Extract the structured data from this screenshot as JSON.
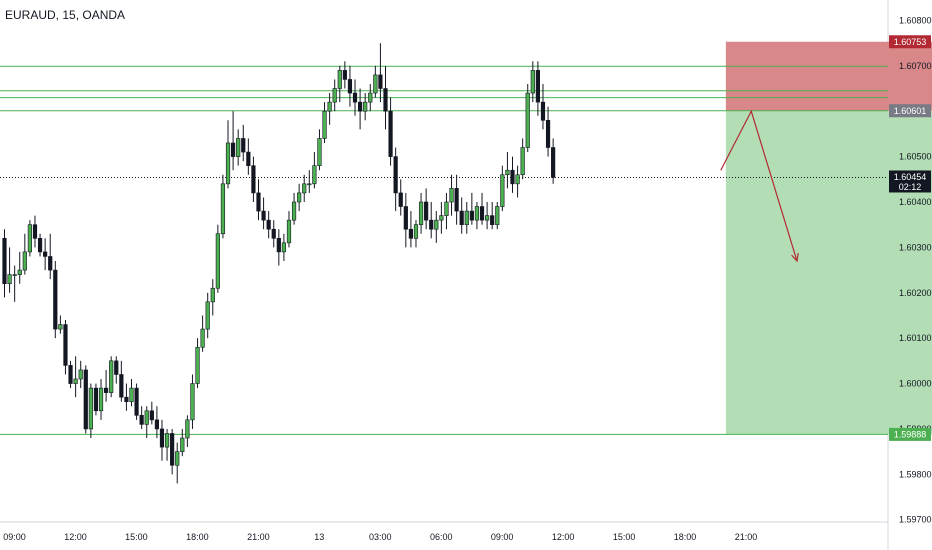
{
  "header": {
    "title": "EURAUD, 15, OANDA"
  },
  "chart_data": {
    "type": "candlestick",
    "symbol": "EURAUD",
    "interval": "15",
    "source": "OANDA",
    "y_ticks": [
      "1.60800",
      "1.60700",
      "1.60500",
      "1.60400",
      "1.60300",
      "1.60200",
      "1.60100",
      "1.60000",
      "1.59900",
      "1.59800",
      "1.59700"
    ],
    "y_tick_values": [
      1.608,
      1.607,
      1.605,
      1.604,
      1.603,
      1.602,
      1.601,
      1.6,
      1.599,
      1.598,
      1.597
    ],
    "ylim": [
      1.59695,
      1.60845
    ],
    "x_ticks": [
      "09:00",
      "12:00",
      "15:00",
      "18:00",
      "21:00",
      "13",
      "03:00",
      "06:00",
      "09:00",
      "12:00",
      "15:00",
      "18:00",
      "21:00"
    ],
    "bars_per_x_tick": 12,
    "price_badges": [
      {
        "label": "1.60753",
        "value": 1.60753,
        "color": "#b22833"
      },
      {
        "label": "1.60601",
        "value": 1.60601,
        "color": "#787b86"
      },
      {
        "label": "1.60454",
        "sub": "02:12",
        "value": 1.60454,
        "color": "#131722"
      },
      {
        "label": "1.59888",
        "value": 1.59888,
        "color": "#4caf50"
      }
    ],
    "horizontal_lines": [
      1.60699,
      1.60645,
      1.6063,
      1.60601,
      1.59888
    ],
    "current_price": 1.60454,
    "position": {
      "direction": "short",
      "entry": 1.60601,
      "stop": 1.60753,
      "target": 1.59888,
      "start_bar": 142,
      "end_bar": 207
    },
    "projection": [
      {
        "bar": 141,
        "price": 1.6047
      },
      {
        "bar": 147,
        "price": 1.606
      },
      {
        "bar": 156,
        "price": 1.6027
      }
    ],
    "candles": [
      [
        1.6032,
        1.6034,
        1.6019,
        1.6022
      ],
      [
        1.6022,
        1.603,
        1.602,
        1.6024
      ],
      [
        1.6024,
        1.6026,
        1.6018,
        1.6024
      ],
      [
        1.6024,
        1.6029,
        1.6022,
        1.6025
      ],
      [
        1.6025,
        1.6033,
        1.6024,
        1.6029
      ],
      [
        1.6029,
        1.6036,
        1.6028,
        1.6035
      ],
      [
        1.6035,
        1.6037,
        1.603,
        1.6032
      ],
      [
        1.6032,
        1.6033,
        1.6028,
        1.6029
      ],
      [
        1.6029,
        1.6032,
        1.6025,
        1.6028
      ],
      [
        1.6028,
        1.6033,
        1.6023,
        1.6025
      ],
      [
        1.6025,
        1.6027,
        1.601,
        1.6012
      ],
      [
        1.6012,
        1.6015,
        1.6011,
        1.6013
      ],
      [
        1.6013,
        1.6014,
        1.6002,
        1.6004
      ],
      [
        1.6004,
        1.6005,
        1.5999,
        1.6
      ],
      [
        1.6,
        1.6006,
        1.5997,
        1.6001
      ],
      [
        1.6001,
        1.6005,
        1.5999,
        1.6003
      ],
      [
        1.6003,
        1.6004,
        1.5989,
        1.599
      ],
      [
        1.599,
        1.6,
        1.5988,
        1.5999
      ],
      [
        1.5999,
        1.6,
        1.5993,
        1.5994
      ],
      [
        1.5994,
        1.6001,
        1.5992,
        1.5999
      ],
      [
        1.5999,
        1.6003,
        1.5996,
        1.5998
      ],
      [
        1.5998,
        1.6006,
        1.5997,
        1.6005
      ],
      [
        1.6005,
        1.6006,
        1.6,
        1.6002
      ],
      [
        1.6002,
        1.6005,
        1.5996,
        1.5997
      ],
      [
        1.5997,
        1.6,
        1.5994,
        1.5996
      ],
      [
        1.5996,
        1.6001,
        1.5995,
        1.5999
      ],
      [
        1.5999,
        1.6,
        1.5992,
        1.5993
      ],
      [
        1.5993,
        1.5995,
        1.599,
        1.5991
      ],
      [
        1.5991,
        1.5995,
        1.5988,
        1.5994
      ],
      [
        1.5994,
        1.5996,
        1.5991,
        1.5992
      ],
      [
        1.5992,
        1.5995,
        1.5988,
        1.599
      ],
      [
        1.599,
        1.5992,
        1.5983,
        1.5986
      ],
      [
        1.5986,
        1.599,
        1.5983,
        1.5989
      ],
      [
        1.5989,
        1.599,
        1.598,
        1.5982
      ],
      [
        1.5982,
        1.5987,
        1.5978,
        1.5985
      ],
      [
        1.5985,
        1.599,
        1.5984,
        1.5988
      ],
      [
        1.5988,
        1.5993,
        1.5986,
        1.5992
      ],
      [
        1.5992,
        1.6002,
        1.599,
        1.6
      ],
      [
        1.6,
        1.601,
        1.5999,
        1.6008
      ],
      [
        1.6008,
        1.6015,
        1.6007,
        1.6012
      ],
      [
        1.6012,
        1.602,
        1.601,
        1.6018
      ],
      [
        1.6018,
        1.6023,
        1.6015,
        1.6021
      ],
      [
        1.6021,
        1.6035,
        1.602,
        1.6033
      ],
      [
        1.6033,
        1.6046,
        1.6032,
        1.6044
      ],
      [
        1.6044,
        1.6058,
        1.6043,
        1.6053
      ],
      [
        1.6053,
        1.606,
        1.6047,
        1.605
      ],
      [
        1.605,
        1.6056,
        1.6048,
        1.6054
      ],
      [
        1.6054,
        1.6057,
        1.6049,
        1.6051
      ],
      [
        1.6051,
        1.6054,
        1.6046,
        1.6048
      ],
      [
        1.6048,
        1.605,
        1.604,
        1.6042
      ],
      [
        1.6042,
        1.6045,
        1.6036,
        1.6038
      ],
      [
        1.6038,
        1.6041,
        1.6034,
        1.6036
      ],
      [
        1.6036,
        1.6038,
        1.6032,
        1.6034
      ],
      [
        1.6034,
        1.6036,
        1.603,
        1.6032
      ],
      [
        1.6032,
        1.6034,
        1.6026,
        1.6029
      ],
      [
        1.6029,
        1.6033,
        1.6027,
        1.6031
      ],
      [
        1.6031,
        1.6038,
        1.603,
        1.6036
      ],
      [
        1.6036,
        1.6042,
        1.6035,
        1.604
      ],
      [
        1.604,
        1.6044,
        1.6038,
        1.6042
      ],
      [
        1.6042,
        1.6046,
        1.604,
        1.6044
      ],
      [
        1.6044,
        1.6047,
        1.6042,
        1.6044
      ],
      [
        1.6044,
        1.6051,
        1.6043,
        1.6048
      ],
      [
        1.6048,
        1.6056,
        1.6047,
        1.6054
      ],
      [
        1.6054,
        1.6062,
        1.6053,
        1.606
      ],
      [
        1.606,
        1.6064,
        1.6057,
        1.6062
      ],
      [
        1.6062,
        1.6067,
        1.606,
        1.6065
      ],
      [
        1.6065,
        1.607,
        1.6062,
        1.6069
      ],
      [
        1.6069,
        1.6071,
        1.6065,
        1.6067
      ],
      [
        1.6067,
        1.607,
        1.6061,
        1.6064
      ],
      [
        1.6064,
        1.6067,
        1.6059,
        1.6062
      ],
      [
        1.6062,
        1.6065,
        1.6056,
        1.606
      ],
      [
        1.606,
        1.6064,
        1.6058,
        1.6062
      ],
      [
        1.6062,
        1.6066,
        1.606,
        1.6064
      ],
      [
        1.6064,
        1.607,
        1.6063,
        1.6068
      ],
      [
        1.6068,
        1.6075,
        1.6062,
        1.6065
      ],
      [
        1.6065,
        1.607,
        1.6056,
        1.606
      ],
      [
        1.606,
        1.6063,
        1.6048,
        1.605
      ],
      [
        1.605,
        1.6052,
        1.6038,
        1.6042
      ],
      [
        1.6042,
        1.6045,
        1.6037,
        1.6039
      ],
      [
        1.6039,
        1.6042,
        1.603,
        1.6034
      ],
      [
        1.6034,
        1.6038,
        1.603,
        1.6032
      ],
      [
        1.6032,
        1.6036,
        1.603,
        1.6035
      ],
      [
        1.6035,
        1.6042,
        1.6033,
        1.604
      ],
      [
        1.604,
        1.6043,
        1.6034,
        1.6036
      ],
      [
        1.6036,
        1.604,
        1.6032,
        1.6034
      ],
      [
        1.6034,
        1.6038,
        1.6031,
        1.6036
      ],
      [
        1.6036,
        1.604,
        1.6033,
        1.6037
      ],
      [
        1.6037,
        1.6042,
        1.6034,
        1.604
      ],
      [
        1.604,
        1.6046,
        1.6037,
        1.6043
      ],
      [
        1.6043,
        1.6046,
        1.6035,
        1.6038
      ],
      [
        1.6038,
        1.6041,
        1.6033,
        1.6035
      ],
      [
        1.6035,
        1.604,
        1.6033,
        1.6038
      ],
      [
        1.6038,
        1.6042,
        1.6035,
        1.6036
      ],
      [
        1.6036,
        1.604,
        1.6034,
        1.6039
      ],
      [
        1.6039,
        1.6042,
        1.6035,
        1.6036
      ],
      [
        1.6036,
        1.604,
        1.6034,
        1.6037
      ],
      [
        1.6037,
        1.604,
        1.6034,
        1.6035
      ],
      [
        1.6035,
        1.604,
        1.6034,
        1.6039
      ],
      [
        1.6039,
        1.6048,
        1.6038,
        1.6046
      ],
      [
        1.6046,
        1.6051,
        1.6043,
        1.6047
      ],
      [
        1.6047,
        1.605,
        1.6042,
        1.6044
      ],
      [
        1.6044,
        1.6048,
        1.6041,
        1.6046
      ],
      [
        1.6046,
        1.6054,
        1.6045,
        1.6052
      ],
      [
        1.6052,
        1.6066,
        1.6051,
        1.6064
      ],
      [
        1.6064,
        1.6071,
        1.6062,
        1.6069
      ],
      [
        1.6069,
        1.6071,
        1.6059,
        1.6062
      ],
      [
        1.6062,
        1.6066,
        1.6056,
        1.6058
      ],
      [
        1.6058,
        1.6061,
        1.605,
        1.6052
      ],
      [
        1.6052,
        1.6054,
        1.6044,
        1.60454
      ]
    ]
  }
}
